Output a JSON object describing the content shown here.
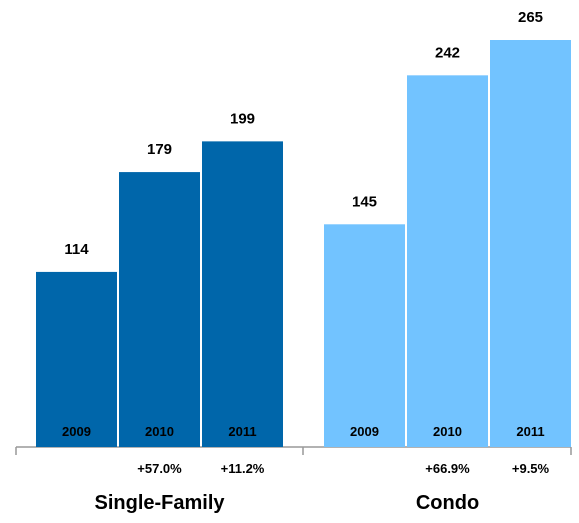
{
  "chart_data": {
    "type": "bar",
    "groups": [
      {
        "name": "Single-Family",
        "color": "#0066aa",
        "categories": [
          "2009",
          "2010",
          "2011"
        ],
        "values": [
          114,
          179,
          199
        ],
        "changes": [
          "",
          "+57.0%",
          "+11.2%"
        ]
      },
      {
        "name": "Condo",
        "color": "#72c3ff",
        "categories": [
          "2009",
          "2010",
          "2011"
        ],
        "values": [
          145,
          242,
          265
        ],
        "changes": [
          "",
          "+66.9%",
          "+9.5%"
        ]
      }
    ],
    "ylim": [
      0,
      265
    ],
    "grid": false,
    "legend": "none"
  }
}
